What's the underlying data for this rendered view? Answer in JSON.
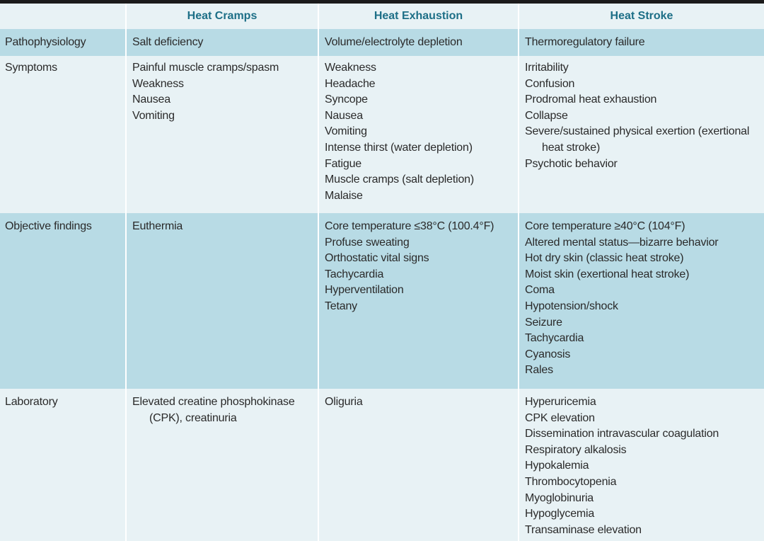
{
  "headers": [
    "",
    "Heat Cramps",
    "Heat Exhaustion",
    "Heat Stroke"
  ],
  "rows": [
    {
      "label": "Pathophysiology",
      "cramps": [
        "Salt deficiency"
      ],
      "exhaustion": [
        "Volume/electrolyte depletion"
      ],
      "stroke": [
        "Thermoregulatory failure"
      ]
    },
    {
      "label": "Symptoms",
      "cramps": [
        "Painful muscle cramps/spasm",
        "Weakness",
        "Nausea",
        "Vomiting"
      ],
      "exhaustion": [
        "Weakness",
        "Headache",
        "Syncope",
        "Nausea",
        "Vomiting",
        "Intense thirst (water depletion)",
        "Fatigue",
        "Muscle cramps (salt depletion)",
        "Malaise"
      ],
      "stroke": [
        "Irritability",
        "Confusion",
        "Prodromal heat exhaustion",
        "Collapse",
        "Severe/sustained physical exertion (exertional heat stroke)",
        "Psychotic behavior"
      ]
    },
    {
      "label": "Objective findings",
      "cramps": [
        "Euthermia"
      ],
      "exhaustion": [
        "Core temperature ≤38°C (100.4°F)",
        "Profuse sweating",
        "Orthostatic vital signs",
        "Tachycardia",
        "Hyperventilation",
        "Tetany"
      ],
      "stroke": [
        "Core temperature ≥40°C (104°F)",
        "Altered mental status—bizarre behavior",
        "Hot dry skin (classic heat stroke)",
        "Moist skin (exertional heat stroke)",
        "Coma",
        "Hypotension/shock",
        "Seizure",
        "Tachycardia",
        "Cyanosis",
        "Rales"
      ]
    },
    {
      "label": "Laboratory",
      "cramps": [
        "Elevated creatine phosphokinase (CPK), creatinuria"
      ],
      "exhaustion": [
        "Oliguria"
      ],
      "stroke": [
        "Hyperuricemia",
        "CPK elevation",
        "Dissemination intravascular coagulation",
        "Respiratory alkalosis",
        "Hypokalemia",
        "Thrombocytopenia",
        "Myoglobinuria",
        "Hypoglycemia",
        "Transaminase elevation"
      ]
    }
  ],
  "colors": {
    "header_text": "#1d6f87",
    "shade": "#b8dbe5",
    "light": "#e8f2f5",
    "frame": "#1b1b1b"
  }
}
